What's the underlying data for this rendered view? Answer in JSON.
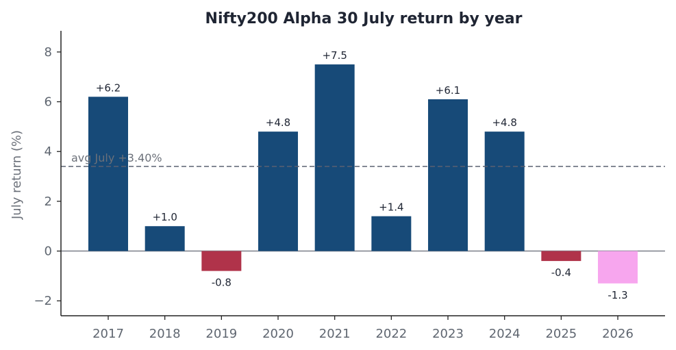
{
  "chart_data": {
    "type": "bar",
    "title": "Nifty200 Alpha 30 July return by year",
    "xlabel": "",
    "ylabel": "July return (%)",
    "categories": [
      "2017",
      "2018",
      "2019",
      "2020",
      "2021",
      "2022",
      "2023",
      "2024",
      "2025",
      "2026"
    ],
    "values": [
      6.2,
      1.0,
      -0.8,
      4.8,
      7.5,
      1.4,
      6.1,
      4.8,
      -0.4,
      -1.3
    ],
    "data_labels": [
      "+6.2",
      "+1.0",
      "-0.8",
      "+4.8",
      "+7.5",
      "+1.4",
      "+6.1",
      "+4.8",
      "-0.4",
      "-1.3"
    ],
    "bar_colors": [
      "#174a78",
      "#174a78",
      "#b0334a",
      "#174a78",
      "#174a78",
      "#174a78",
      "#174a78",
      "#174a78",
      "#b0334a",
      "#f7a6ee"
    ],
    "ylim": [
      -2.6,
      8.85
    ],
    "yticks": [
      -2,
      0,
      2,
      4,
      6,
      8
    ],
    "ytick_labels": [
      "−2",
      "0",
      "2",
      "4",
      "6",
      "8"
    ],
    "reference_line": {
      "value": 3.4,
      "label": "avg July +3.40%",
      "style": "dashed",
      "color": "#5a6070"
    },
    "zero_line": true,
    "grid": false
  }
}
